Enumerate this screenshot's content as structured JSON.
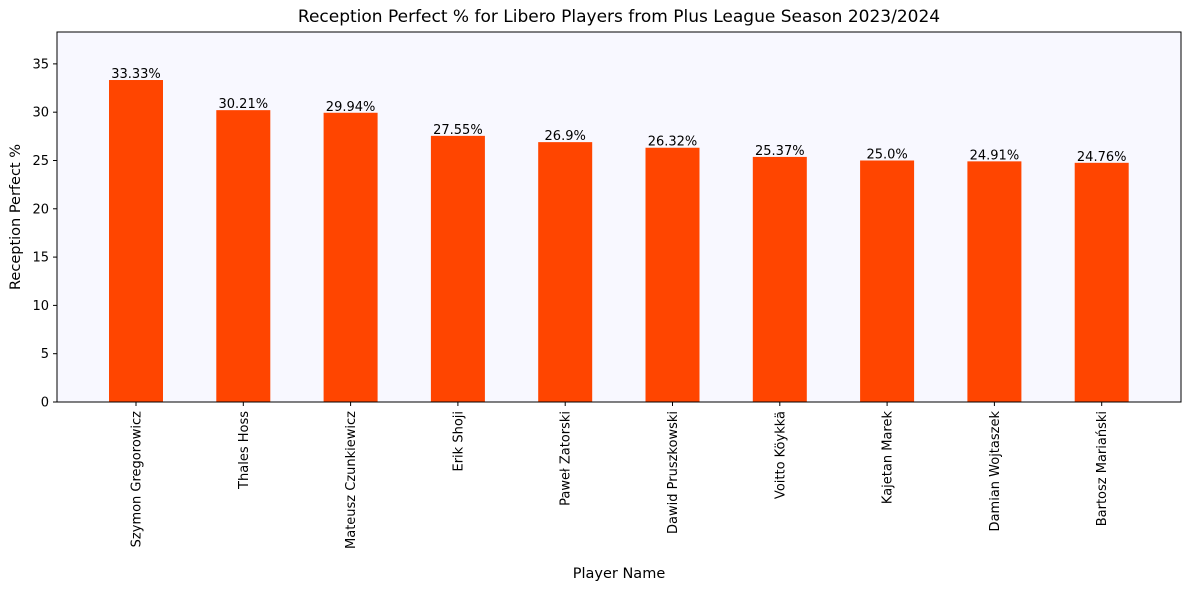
{
  "chart_data": {
    "type": "bar",
    "title": "Reception Perfect % for Libero Players from Plus League Season 2023/2024",
    "xlabel": "Player Name",
    "ylabel": "Reception Perfect %",
    "categories": [
      "Szymon Gregorowicz",
      "Thales Hoss",
      "Mateusz Czunkiewicz",
      "Erik Shoji",
      "Paweł Zatorski",
      "Dawid Pruszkowski",
      "Voitto Köykkä",
      "Kajetan Marek",
      "Damian Wojtaszek",
      "Bartosz Mariański"
    ],
    "values": [
      33.33,
      30.21,
      29.94,
      27.55,
      26.9,
      26.32,
      25.37,
      25.0,
      24.91,
      24.76
    ],
    "data_labels": [
      "33.33%",
      "30.21%",
      "29.94%",
      "27.55%",
      "26.9%",
      "26.32%",
      "25.37%",
      "25.0%",
      "24.91%",
      "24.76%"
    ],
    "ylim": [
      0,
      38.3
    ],
    "yticks": [
      0,
      5,
      10,
      15,
      20,
      25,
      30,
      35
    ],
    "grid": false,
    "legend": "none",
    "colors": {
      "bar": "#ff4500",
      "plot_background": "#f8f8ff"
    }
  }
}
